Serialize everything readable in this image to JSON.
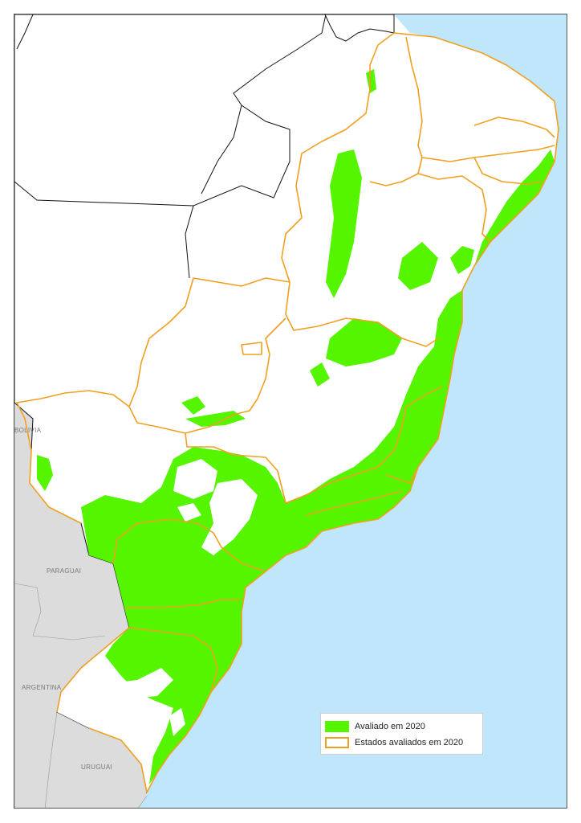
{
  "map": {
    "colors": {
      "ocean": "#bfe6fa",
      "neighbors": "#dcdcdc",
      "land": "#ffffff",
      "evaluated_area": "#55f500",
      "state_borders": "#f0a020",
      "other_borders": "#111111"
    },
    "country_labels": {
      "bolivia": "BOLIVIA",
      "paraguay": "PARAGUAI",
      "argentina": "ARGENTINA",
      "uruguay": "URUGUAI"
    },
    "legend": {
      "items": [
        {
          "label": "Avaliado em 2020",
          "style": "filled",
          "color": "#55f500"
        },
        {
          "label": "Estados avaliados em 2020",
          "style": "outline",
          "color": "#f0a020"
        }
      ]
    }
  }
}
